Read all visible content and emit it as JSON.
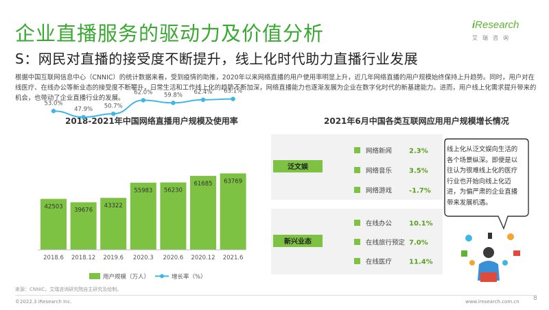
{
  "header": {
    "title": "企业直播服务的驱动力及价值分析",
    "subtitle": "S：网民对直播的接受度不断提升，线上化时代助力直播行业发展",
    "logo": {
      "brand_i": "i",
      "brand_rest": "Research",
      "tagline": "艾瑞咨询"
    },
    "intro": "根据中国互联网信息中心（CNNIC）的统计数据来看，受到疫情的助推，2020年以来网络直播的用户使用率明显上升，近几年网络直播的用户规模始终保持上升趋势。同时，用户对在线医疗、在线办公等新业态的接受度不断攀升，日常生活和工作线上化的趋势不断加深，网络直播能力也逐渐发展为企业在数字化时代的新基建能力。进而，用户线上化需求提升带来的机会，也带动了企业直播行业的发展。"
  },
  "colors": {
    "green": "#7dc242",
    "line_blue": "#3eb6e6",
    "title_green": "#3aa832",
    "label_bg": "#f2f2f2"
  },
  "chart_data": [
    {
      "type": "bar",
      "title": "2018-2021年中国网络直播用户规模及使用率",
      "categories": [
        "2018.6",
        "2018.12",
        "2019.6",
        "2020.3",
        "2020.6",
        "2020.12",
        "2021.6"
      ],
      "series": [
        {
          "name": "用户规模（万人）",
          "type": "bar",
          "values": [
            42503,
            39676,
            43322,
            55983,
            56230,
            61685,
            63769
          ]
        },
        {
          "name": "增长率（%）",
          "type": "line",
          "values": [
            53.0,
            47.9,
            50.7,
            62.0,
            59.8,
            62.4,
            63.1
          ]
        }
      ],
      "bar_value_labels": [
        "42503",
        "39676",
        "43322",
        "55983",
        "56230",
        "61685",
        "63769"
      ],
      "line_value_labels": [
        "53.0%",
        "47.9%",
        "50.7%",
        "62.0%",
        "59.8%",
        "62.4%",
        "63.1%"
      ],
      "ylim_bar": [
        0,
        100000
      ],
      "ylim_line": [
        0,
        100
      ],
      "legend": {
        "position": "bottom"
      }
    },
    {
      "type": "bar",
      "title": "2021年6月中国各类互联网应用用户规模增长情况",
      "groups": [
        {
          "name": "泛文娱",
          "items": [
            {
              "label": "网络新闻",
              "value": 2.3,
              "display": "2.3%"
            },
            {
              "label": "网络音乐",
              "value": 3.5,
              "display": "3.5%"
            },
            {
              "label": "网络游戏",
              "value": -1.7,
              "display": "-1.7%"
            }
          ]
        },
        {
          "name": "新兴业态",
          "items": [
            {
              "label": "在线办公",
              "value": 10.1,
              "display": "10.1%"
            },
            {
              "label": "在线旅行预定",
              "value": 7.0,
              "display": "7.0%"
            },
            {
              "label": "在线医疗",
              "value": 11.4,
              "display": "11.4%"
            }
          ]
        }
      ]
    }
  ],
  "bubble": {
    "text": "线上化从泛文娱向生活的各个场景纵深。即便是以往认为很难线上化的医疗行业也开始向线上化迈进，为偏严肃的企业直播带来发展机遇。"
  },
  "footer": {
    "source": "来源：CNNIC，艾瑞咨询研究院自主研究及绘制。",
    "copyright": "©2022.3 iResearch Inc.",
    "site": "www.iresearch.com.cn",
    "page": "8"
  }
}
